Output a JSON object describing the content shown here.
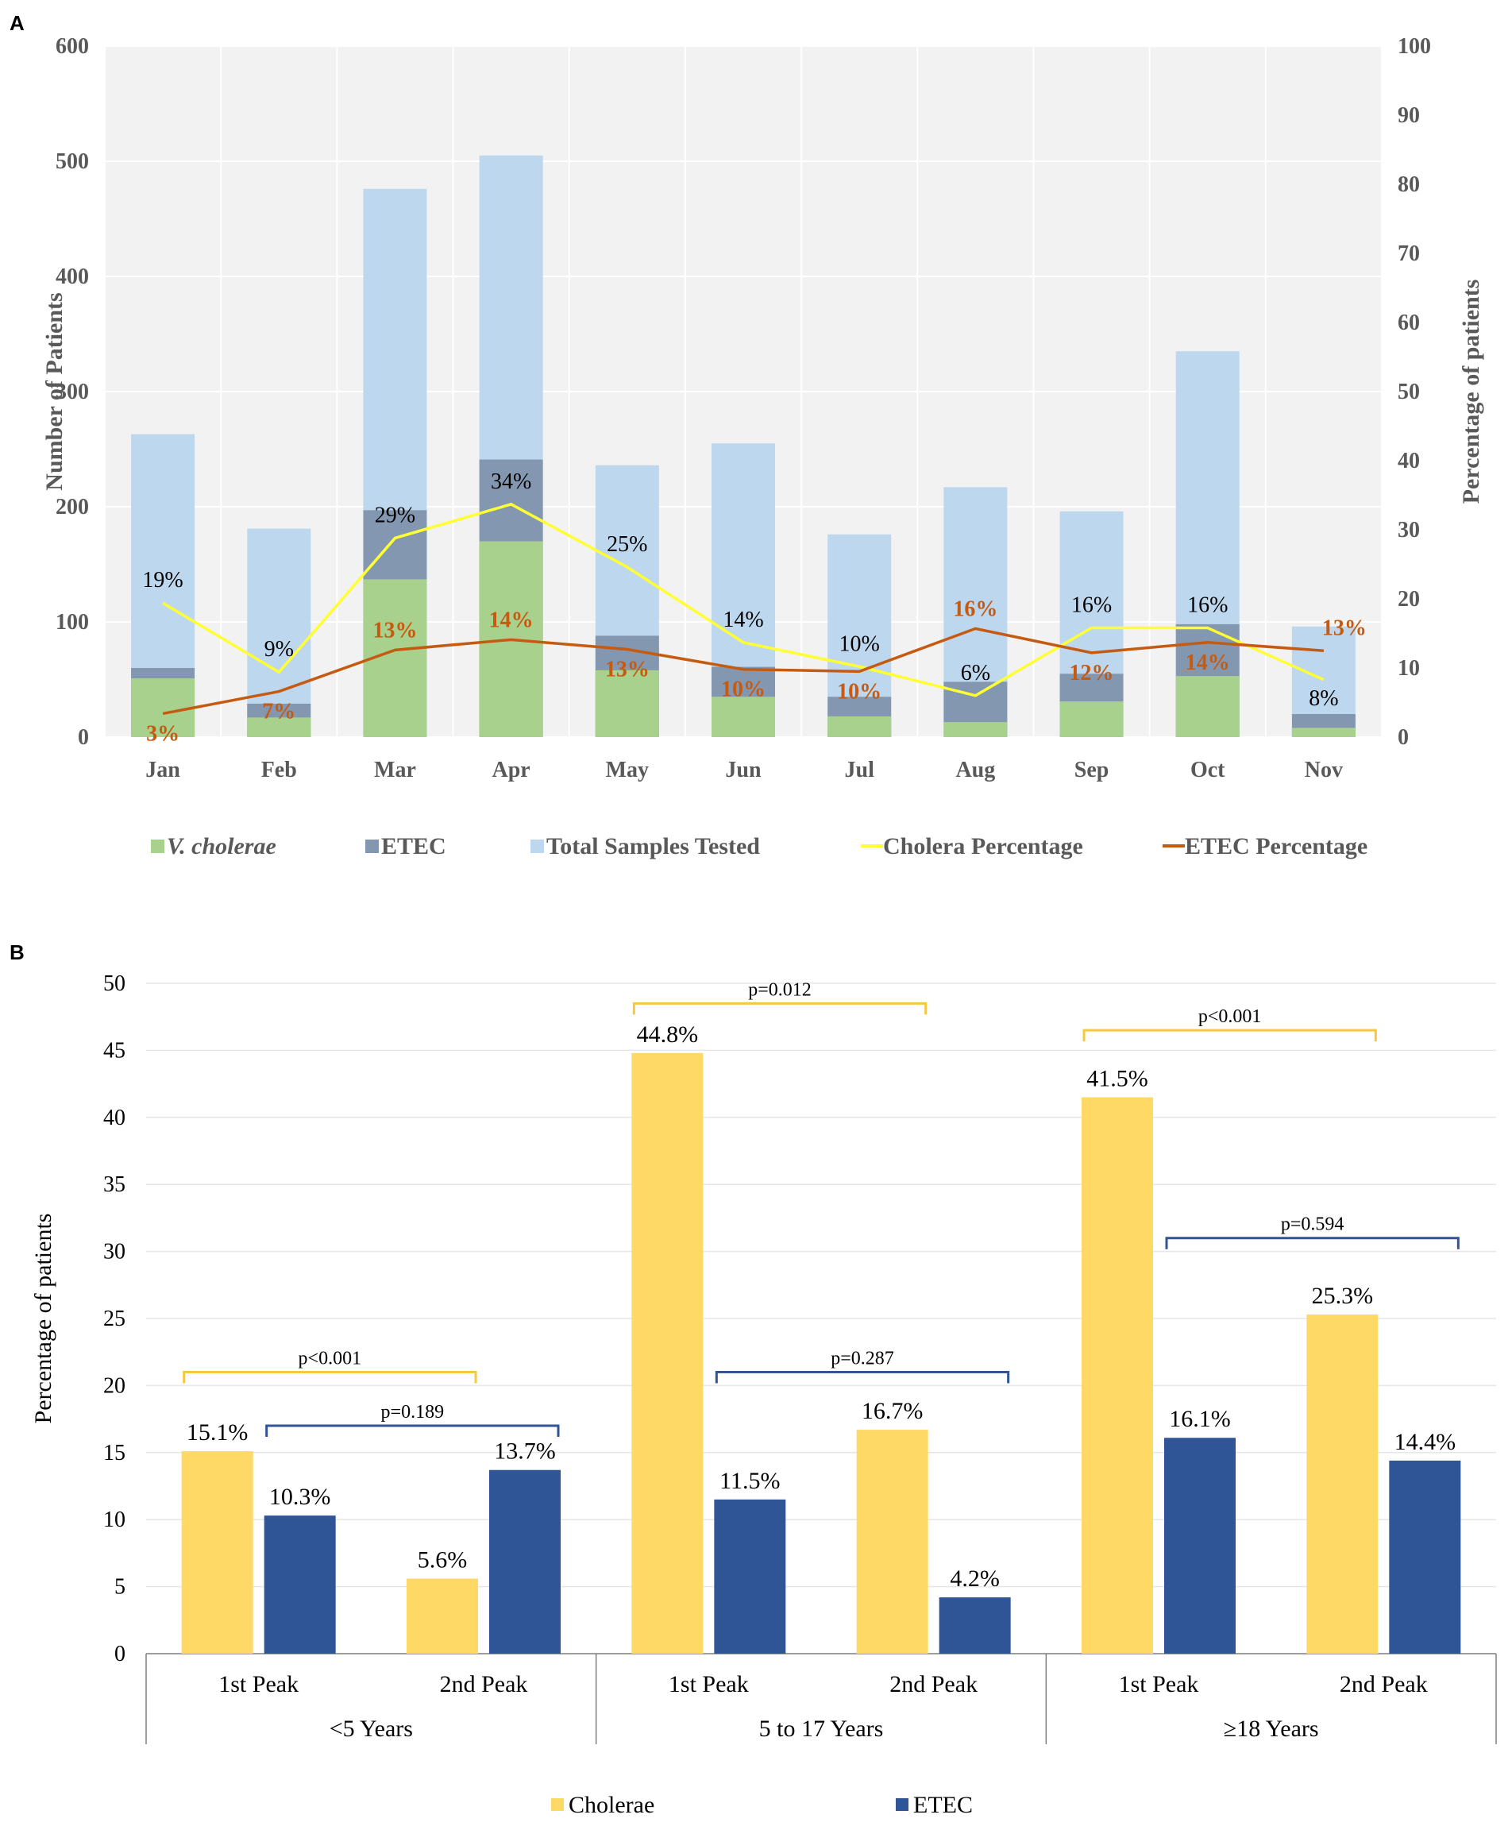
{
  "figure": {
    "panel_a_label": "A",
    "panel_b_label": "B"
  },
  "colors": {
    "vcholerae": "#a9d18e",
    "etec_bar": "#8497b0",
    "total": "#bdd7ee",
    "cholera_line": "#ffff33",
    "etec_line": "#c55a11",
    "etec_label": "#c55a11",
    "cholerae_b": "#ffd966",
    "etec_b": "#2f5597",
    "axis_text": "#595959",
    "grid": "#e6e6e6",
    "plot_bg": "#f2f2f2"
  },
  "chart_data": [
    {
      "type": "bar",
      "id": "A",
      "title": "",
      "xlabel": "",
      "ylabel": "Number of Patients",
      "y2label": "Percentage of patients",
      "ylim": [
        0,
        600
      ],
      "yticks": [
        "0",
        "100",
        "200",
        "300",
        "400",
        "500",
        "600"
      ],
      "y2lim": [
        0,
        100
      ],
      "y2ticks": [
        "0",
        "10",
        "20",
        "30",
        "40",
        "50",
        "60",
        "70",
        "80",
        "90",
        "100"
      ],
      "categories": [
        "Jan",
        "Feb",
        "Mar",
        "Apr",
        "May",
        "Jun",
        "Jul",
        "Aug",
        "Sep",
        "Oct",
        "Nov"
      ],
      "series": [
        {
          "name": "V. cholerae",
          "kind": "bar",
          "values": [
            51,
            17,
            137,
            170,
            58,
            35,
            18,
            13,
            31,
            53,
            8
          ]
        },
        {
          "name": "ETEC",
          "kind": "bar",
          "values": [
            60,
            29,
            197,
            241,
            88,
            61,
            35,
            48,
            55,
            98,
            20
          ]
        },
        {
          "name": "Total Samples Tested",
          "kind": "bar",
          "values": [
            263,
            181,
            476,
            505,
            236,
            255,
            176,
            217,
            196,
            335,
            96
          ]
        },
        {
          "name": "Cholera Percentage",
          "kind": "line",
          "axis": "right",
          "values": [
            19.4,
            9.4,
            28.8,
            33.7,
            24.6,
            13.7,
            10.2,
            6.0,
            15.8,
            15.8,
            8.3
          ]
        },
        {
          "name": "ETEC Percentage",
          "kind": "line",
          "axis": "right",
          "values": [
            3.4,
            6.6,
            12.6,
            14.1,
            12.7,
            9.8,
            9.5,
            15.7,
            12.2,
            13.7,
            12.5
          ]
        }
      ],
      "cholera_labels": [
        "19%",
        "9%",
        "29%",
        "34%",
        "25%",
        "14%",
        "10%",
        "6%",
        "16%",
        "16%",
        "8%"
      ],
      "etec_labels": [
        "3%",
        "7%",
        "13%",
        "14%",
        "13%",
        "10%",
        "10%",
        "16%",
        "12%",
        "14%",
        "13%"
      ],
      "legend": [
        "V. cholerae",
        "ETEC",
        "Total Samples Tested",
        "Cholera Percentage",
        "ETEC Percentage"
      ]
    },
    {
      "type": "bar",
      "id": "B",
      "title": "",
      "xlabel": "",
      "ylabel": "Percentage of patients",
      "ylim": [
        0,
        50
      ],
      "yticks": [
        "0",
        "5",
        "10",
        "15",
        "20",
        "25",
        "30",
        "35",
        "40",
        "45",
        "50"
      ],
      "groups": [
        {
          "label": "<5 Years",
          "peaks": [
            "1st Peak",
            "2nd Peak"
          ]
        },
        {
          "label": "5 to 17 Years",
          "peaks": [
            "1st Peak",
            "2nd Peak"
          ]
        },
        {
          "label": "≥18 Years",
          "peaks": [
            "1st Peak",
            "2nd Peak"
          ]
        }
      ],
      "series": [
        {
          "name": "Cholerae",
          "values": [
            15.1,
            5.6,
            44.8,
            16.7,
            41.5,
            25.3
          ],
          "labels": [
            "15.1%",
            "5.6%",
            "44.8%",
            "16.7%",
            "41.5%",
            "25.3%"
          ]
        },
        {
          "name": "ETEC",
          "values": [
            10.3,
            13.7,
            11.5,
            4.2,
            16.1,
            14.4
          ],
          "labels": [
            "10.3%",
            "13.7%",
            "11.5%",
            "4.2%",
            "16.1%",
            "14.4%"
          ]
        }
      ],
      "pvalues": [
        {
          "group": 0,
          "series": "Cholerae",
          "text": "p<0.001",
          "level": 21
        },
        {
          "group": 0,
          "series": "ETEC",
          "text": "p=0.189",
          "level": 17
        },
        {
          "group": 1,
          "series": "Cholerae",
          "text": "p=0.012",
          "level": 48.5
        },
        {
          "group": 1,
          "series": "ETEC",
          "text": "p=0.287",
          "level": 21
        },
        {
          "group": 2,
          "series": "Cholerae",
          "text": "p<0.001",
          "level": 46.5
        },
        {
          "group": 2,
          "series": "ETEC",
          "text": "p=0.594",
          "level": 31
        }
      ],
      "legend": [
        "Cholerae",
        "ETEC"
      ]
    }
  ]
}
